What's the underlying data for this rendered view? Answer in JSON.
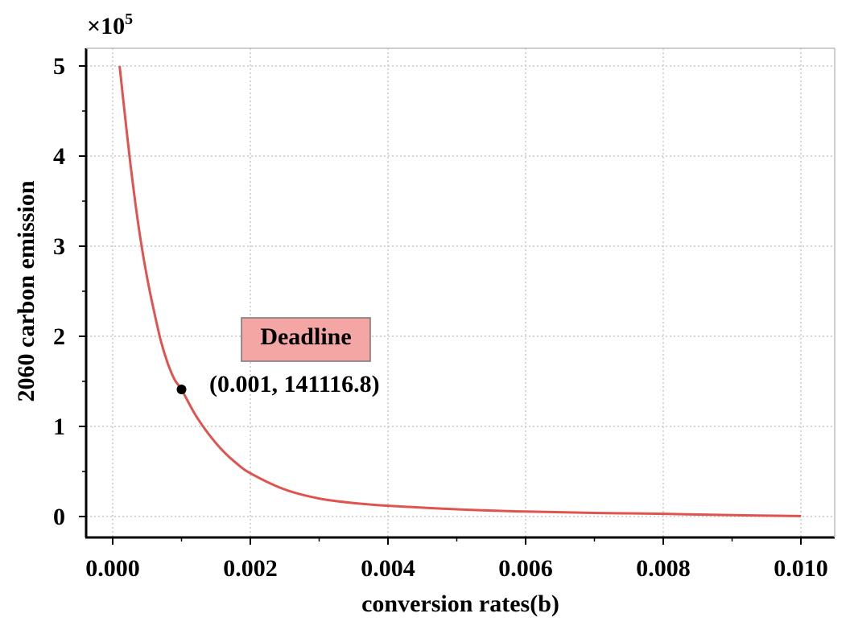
{
  "chart_data": {
    "type": "line",
    "xlabel": "conversion rates(b)",
    "ylabel": "2060 carbon emission",
    "y_multiplier_label": "×10",
    "y_multiplier_exponent": "5",
    "xlim": [
      0.0,
      0.01
    ],
    "ylim": [
      0,
      5
    ],
    "x_ticks": [
      "0.000",
      "0.002",
      "0.004",
      "0.006",
      "0.008",
      "0.010"
    ],
    "y_ticks": [
      "0",
      "1",
      "2",
      "3",
      "4",
      "5"
    ],
    "grid": true,
    "series": [
      {
        "color": "#e0534f",
        "x": [
          0.0001,
          0.0002,
          0.0003,
          0.0004,
          0.0005,
          0.0006,
          0.0007,
          0.0008,
          0.0009,
          0.001,
          0.0012,
          0.0014,
          0.0016,
          0.0018,
          0.002,
          0.0025,
          0.003,
          0.0035,
          0.004,
          0.005,
          0.006,
          0.007,
          0.008,
          0.009,
          0.01
        ],
        "y": [
          5.0,
          4.3,
          3.65,
          3.1,
          2.65,
          2.28,
          1.95,
          1.7,
          1.52,
          1.41,
          1.13,
          0.91,
          0.73,
          0.59,
          0.48,
          0.3,
          0.2,
          0.15,
          0.12,
          0.08,
          0.055,
          0.04,
          0.03,
          0.015,
          0.005
        ]
      }
    ],
    "highlight_point": {
      "x": 0.001,
      "y": 1.411168,
      "label": "(0.001, 141116.8)"
    },
    "annotation_box": {
      "text": "Deadline",
      "fill": "#f4a6a4"
    }
  }
}
